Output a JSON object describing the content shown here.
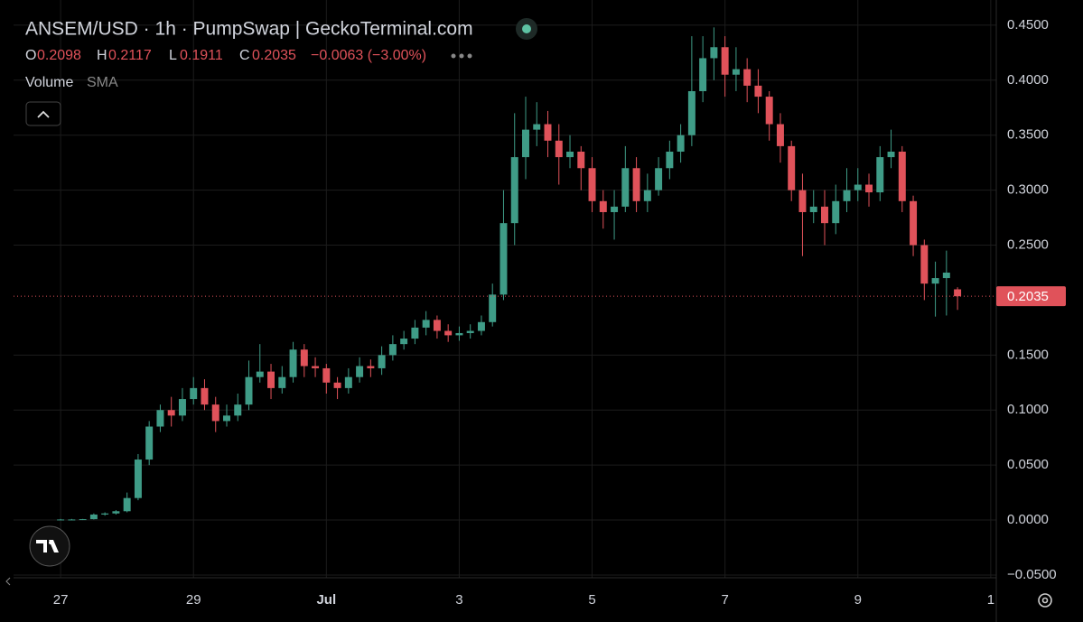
{
  "header": {
    "title": "ANSEM/USD · 1h · PumpSwap | GeckoTerminal.com",
    "o_label": "O",
    "h_label": "H",
    "l_label": "L",
    "c_label": "C",
    "change": "−0.0063 (−3.00%)",
    "volume": "Volume",
    "sma": "SMA"
  },
  "chart_data": {
    "type": "candlestick",
    "up_color": "#3f9c87",
    "down_color": "#e0525a",
    "grid": true,
    "x": [
      0,
      4,
      8,
      12,
      16,
      20,
      24,
      28,
      32,
      36,
      40,
      44,
      48,
      52,
      56,
      60,
      64,
      68,
      72,
      76,
      80,
      84,
      88,
      92,
      96,
      100,
      104,
      108,
      112,
      116,
      120,
      124,
      128,
      132,
      136,
      140,
      144,
      148,
      152,
      156,
      160,
      164,
      168,
      172,
      176,
      180,
      184,
      188,
      192,
      196,
      200,
      204,
      208,
      212,
      216,
      220,
      224,
      228,
      232,
      236,
      240,
      244,
      248,
      252,
      256,
      260,
      264,
      268,
      272,
      276,
      280,
      284,
      288,
      292,
      296,
      300,
      304,
      308,
      312,
      316,
      320,
      324
    ],
    "open": [
      0.0005,
      0.0005,
      0.0005,
      0.0008,
      0.005,
      0.006,
      0.008,
      0.02,
      0.055,
      0.085,
      0.1,
      0.095,
      0.11,
      0.12,
      0.105,
      0.09,
      0.095,
      0.105,
      0.13,
      0.135,
      0.12,
      0.13,
      0.155,
      0.14,
      0.138,
      0.125,
      0.12,
      0.13,
      0.14,
      0.138,
      0.15,
      0.16,
      0.165,
      0.175,
      0.182,
      0.172,
      0.168,
      0.17,
      0.172,
      0.18,
      0.205,
      0.27,
      0.33,
      0.355,
      0.36,
      0.345,
      0.33,
      0.335,
      0.32,
      0.29,
      0.28,
      0.285,
      0.32,
      0.29,
      0.3,
      0.32,
      0.335,
      0.35,
      0.39,
      0.42,
      0.43,
      0.405,
      0.41,
      0.395,
      0.385,
      0.36,
      0.34,
      0.3,
      0.28,
      0.285,
      0.27,
      0.29,
      0.3,
      0.305,
      0.298,
      0.33,
      0.335,
      0.29,
      0.25,
      0.215,
      0.22,
      0.2098
    ],
    "high": [
      0.001,
      0.001,
      0.001,
      0.006,
      0.007,
      0.009,
      0.025,
      0.06,
      0.09,
      0.105,
      0.112,
      0.12,
      0.13,
      0.128,
      0.112,
      0.105,
      0.115,
      0.145,
      0.16,
      0.142,
      0.14,
      0.162,
      0.16,
      0.148,
      0.142,
      0.13,
      0.138,
      0.148,
      0.146,
      0.158,
      0.168,
      0.172,
      0.182,
      0.19,
      0.186,
      0.178,
      0.176,
      0.178,
      0.186,
      0.215,
      0.3,
      0.37,
      0.385,
      0.38,
      0.372,
      0.36,
      0.35,
      0.34,
      0.33,
      0.3,
      0.3,
      0.34,
      0.33,
      0.315,
      0.33,
      0.345,
      0.36,
      0.44,
      0.44,
      0.448,
      0.44,
      0.43,
      0.42,
      0.41,
      0.39,
      0.37,
      0.345,
      0.315,
      0.3,
      0.3,
      0.305,
      0.32,
      0.32,
      0.315,
      0.34,
      0.355,
      0.34,
      0.295,
      0.255,
      0.235,
      0.245,
      0.2117
    ],
    "low": [
      0,
      0,
      0,
      0.0005,
      0.004,
      0.005,
      0.007,
      0.018,
      0.05,
      0.08,
      0.085,
      0.09,
      0.105,
      0.1,
      0.08,
      0.085,
      0.09,
      0.1,
      0.125,
      0.11,
      0.115,
      0.125,
      0.13,
      0.13,
      0.115,
      0.11,
      0.115,
      0.125,
      0.13,
      0.132,
      0.145,
      0.155,
      0.16,
      0.168,
      0.165,
      0.162,
      0.163,
      0.165,
      0.168,
      0.176,
      0.2,
      0.25,
      0.31,
      0.34,
      0.33,
      0.305,
      0.32,
      0.3,
      0.28,
      0.265,
      0.255,
      0.28,
      0.28,
      0.28,
      0.295,
      0.31,
      0.325,
      0.34,
      0.38,
      0.4,
      0.385,
      0.39,
      0.38,
      0.37,
      0.345,
      0.325,
      0.29,
      0.24,
      0.27,
      0.25,
      0.26,
      0.28,
      0.29,
      0.285,
      0.29,
      0.32,
      0.28,
      0.24,
      0.2,
      0.185,
      0.186,
      0.1911
    ],
    "close": [
      0.0005,
      0.0005,
      0.0008,
      0.005,
      0.006,
      0.008,
      0.02,
      0.055,
      0.085,
      0.1,
      0.095,
      0.11,
      0.12,
      0.105,
      0.09,
      0.095,
      0.105,
      0.13,
      0.135,
      0.12,
      0.13,
      0.155,
      0.14,
      0.138,
      0.125,
      0.12,
      0.13,
      0.14,
      0.138,
      0.15,
      0.16,
      0.165,
      0.175,
      0.182,
      0.172,
      0.168,
      0.17,
      0.172,
      0.18,
      0.205,
      0.27,
      0.33,
      0.355,
      0.36,
      0.345,
      0.33,
      0.335,
      0.32,
      0.29,
      0.28,
      0.285,
      0.32,
      0.29,
      0.3,
      0.32,
      0.335,
      0.35,
      0.39,
      0.42,
      0.43,
      0.405,
      0.41,
      0.395,
      0.385,
      0.36,
      0.34,
      0.3,
      0.28,
      0.285,
      0.27,
      0.29,
      0.3,
      0.305,
      0.298,
      0.33,
      0.335,
      0.29,
      0.25,
      0.215,
      0.22,
      0.225,
      0.2035
    ],
    "xlim": [
      -17,
      338
    ],
    "xticks": [
      {
        "value": 0,
        "label": "27"
      },
      {
        "value": 48,
        "label": "29"
      },
      {
        "value": 96,
        "label": "Jul"
      },
      {
        "value": 144,
        "label": "3"
      },
      {
        "value": 192,
        "label": "5"
      },
      {
        "value": 240,
        "label": "7"
      },
      {
        "value": 288,
        "label": "9"
      },
      {
        "value": 336,
        "label": "1"
      }
    ],
    "ylim": [
      -0.0525,
      0.4647
    ],
    "yticks": [
      {
        "value": 0.45,
        "label": "0.4500"
      },
      {
        "value": 0.4,
        "label": "0.4000"
      },
      {
        "value": 0.35,
        "label": "0.3500"
      },
      {
        "value": 0.3,
        "label": "0.3000"
      },
      {
        "value": 0.25,
        "label": "0.2500"
      },
      {
        "value": 0.15,
        "label": "0.1500"
      },
      {
        "value": 0.1,
        "label": "0.1000"
      },
      {
        "value": 0.05,
        "label": "0.0500"
      },
      {
        "value": 0,
        "label": "0.0000"
      },
      {
        "value": -0.05,
        "label": "−0.0500"
      }
    ]
  }
}
